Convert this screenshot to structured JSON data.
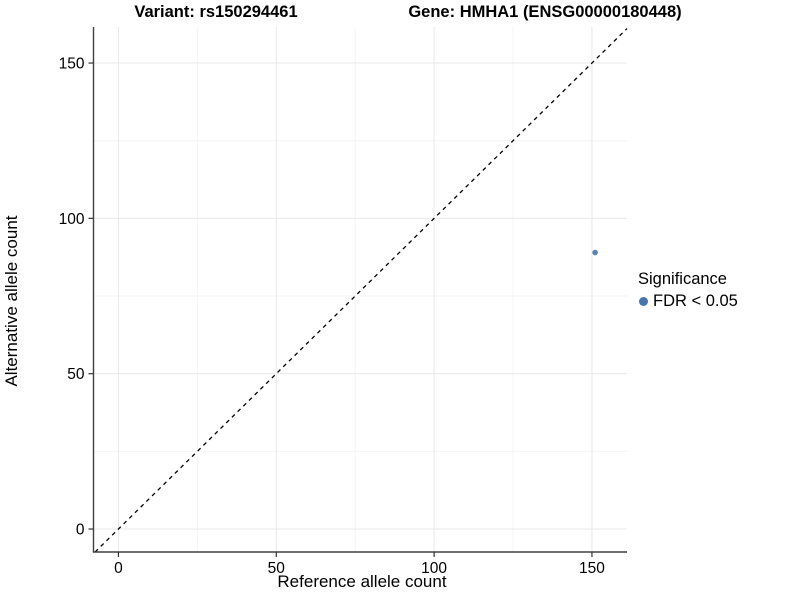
{
  "chart_data": {
    "type": "scatter",
    "titles": {
      "left": "Variant: rs150294461",
      "right": "Gene: HMHA1 (ENSG00000180448)"
    },
    "xlabel": "Reference allele count",
    "ylabel": "Alternative allele count",
    "xlim": [
      -7.9,
      161.1
    ],
    "ylim": [
      -7.4,
      161.6
    ],
    "x_ticks": [
      0,
      50,
      100,
      150
    ],
    "y_ticks": [
      0,
      50,
      100,
      150
    ],
    "x_minor_ticks": [
      25,
      75,
      125
    ],
    "y_minor_ticks": [
      25,
      75,
      125
    ],
    "grid": true,
    "series": [
      {
        "name": "FDR < 0.05",
        "color": "#4676ac",
        "points": [
          {
            "x": 151,
            "y": 89
          }
        ]
      }
    ],
    "reference_line": {
      "type": "identity",
      "equation": "y = x",
      "style": "dashed",
      "color": "#000000"
    },
    "legend": {
      "title": "Significance",
      "position": "right",
      "entries": [
        {
          "label": "FDR < 0.05",
          "color": "#4676ac"
        }
      ]
    },
    "colors": {
      "background": "#ffffff",
      "axis_line": "#404040",
      "tick_mark": "#333333",
      "grid_major": "#e8e8e8",
      "grid_minor": "#f4f4f4",
      "tick_label": "#000000",
      "point": "#4676ac"
    }
  }
}
